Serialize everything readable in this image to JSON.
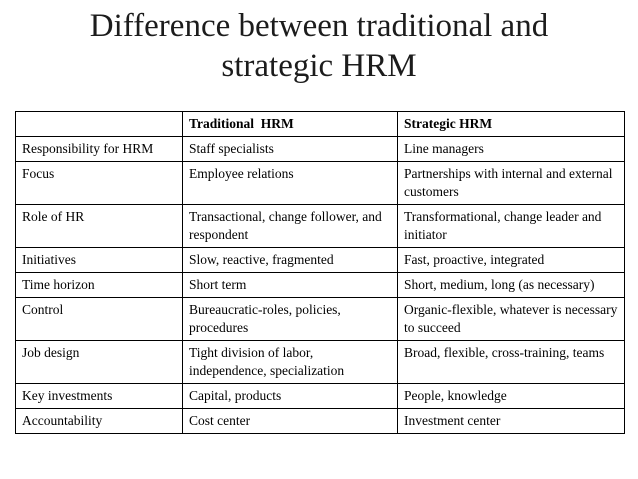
{
  "slide": {
    "title_line1": "Difference between traditional and",
    "title_line2": "strategic HRM"
  },
  "table": {
    "headers": [
      "",
      "Traditional  HRM",
      "Strategic HRM"
    ],
    "rows": [
      [
        "Responsibility for HRM",
        "Staff specialists",
        "Line managers"
      ],
      [
        "Focus",
        "Employee relations",
        "Partnerships with internal and external customers"
      ],
      [
        "Role of HR",
        "Transactional, change follower, and respondent",
        "Transformational, change leader and initiator"
      ],
      [
        "Initiatives",
        "Slow, reactive, fragmented",
        "Fast, proactive, integrated"
      ],
      [
        "Time horizon",
        "Short term",
        "Short, medium, long (as necessary)"
      ],
      [
        "Control",
        "Bureaucratic-roles, policies, procedures",
        "Organic-flexible, whatever is necessary to succeed"
      ],
      [
        "Job design",
        "Tight division of labor, independence, specialization",
        "Broad, flexible, cross-training, teams"
      ],
      [
        "Key investments",
        "Capital, products",
        "People, knowledge"
      ],
      [
        "Accountability",
        "Cost center",
        "Investment center"
      ]
    ]
  }
}
